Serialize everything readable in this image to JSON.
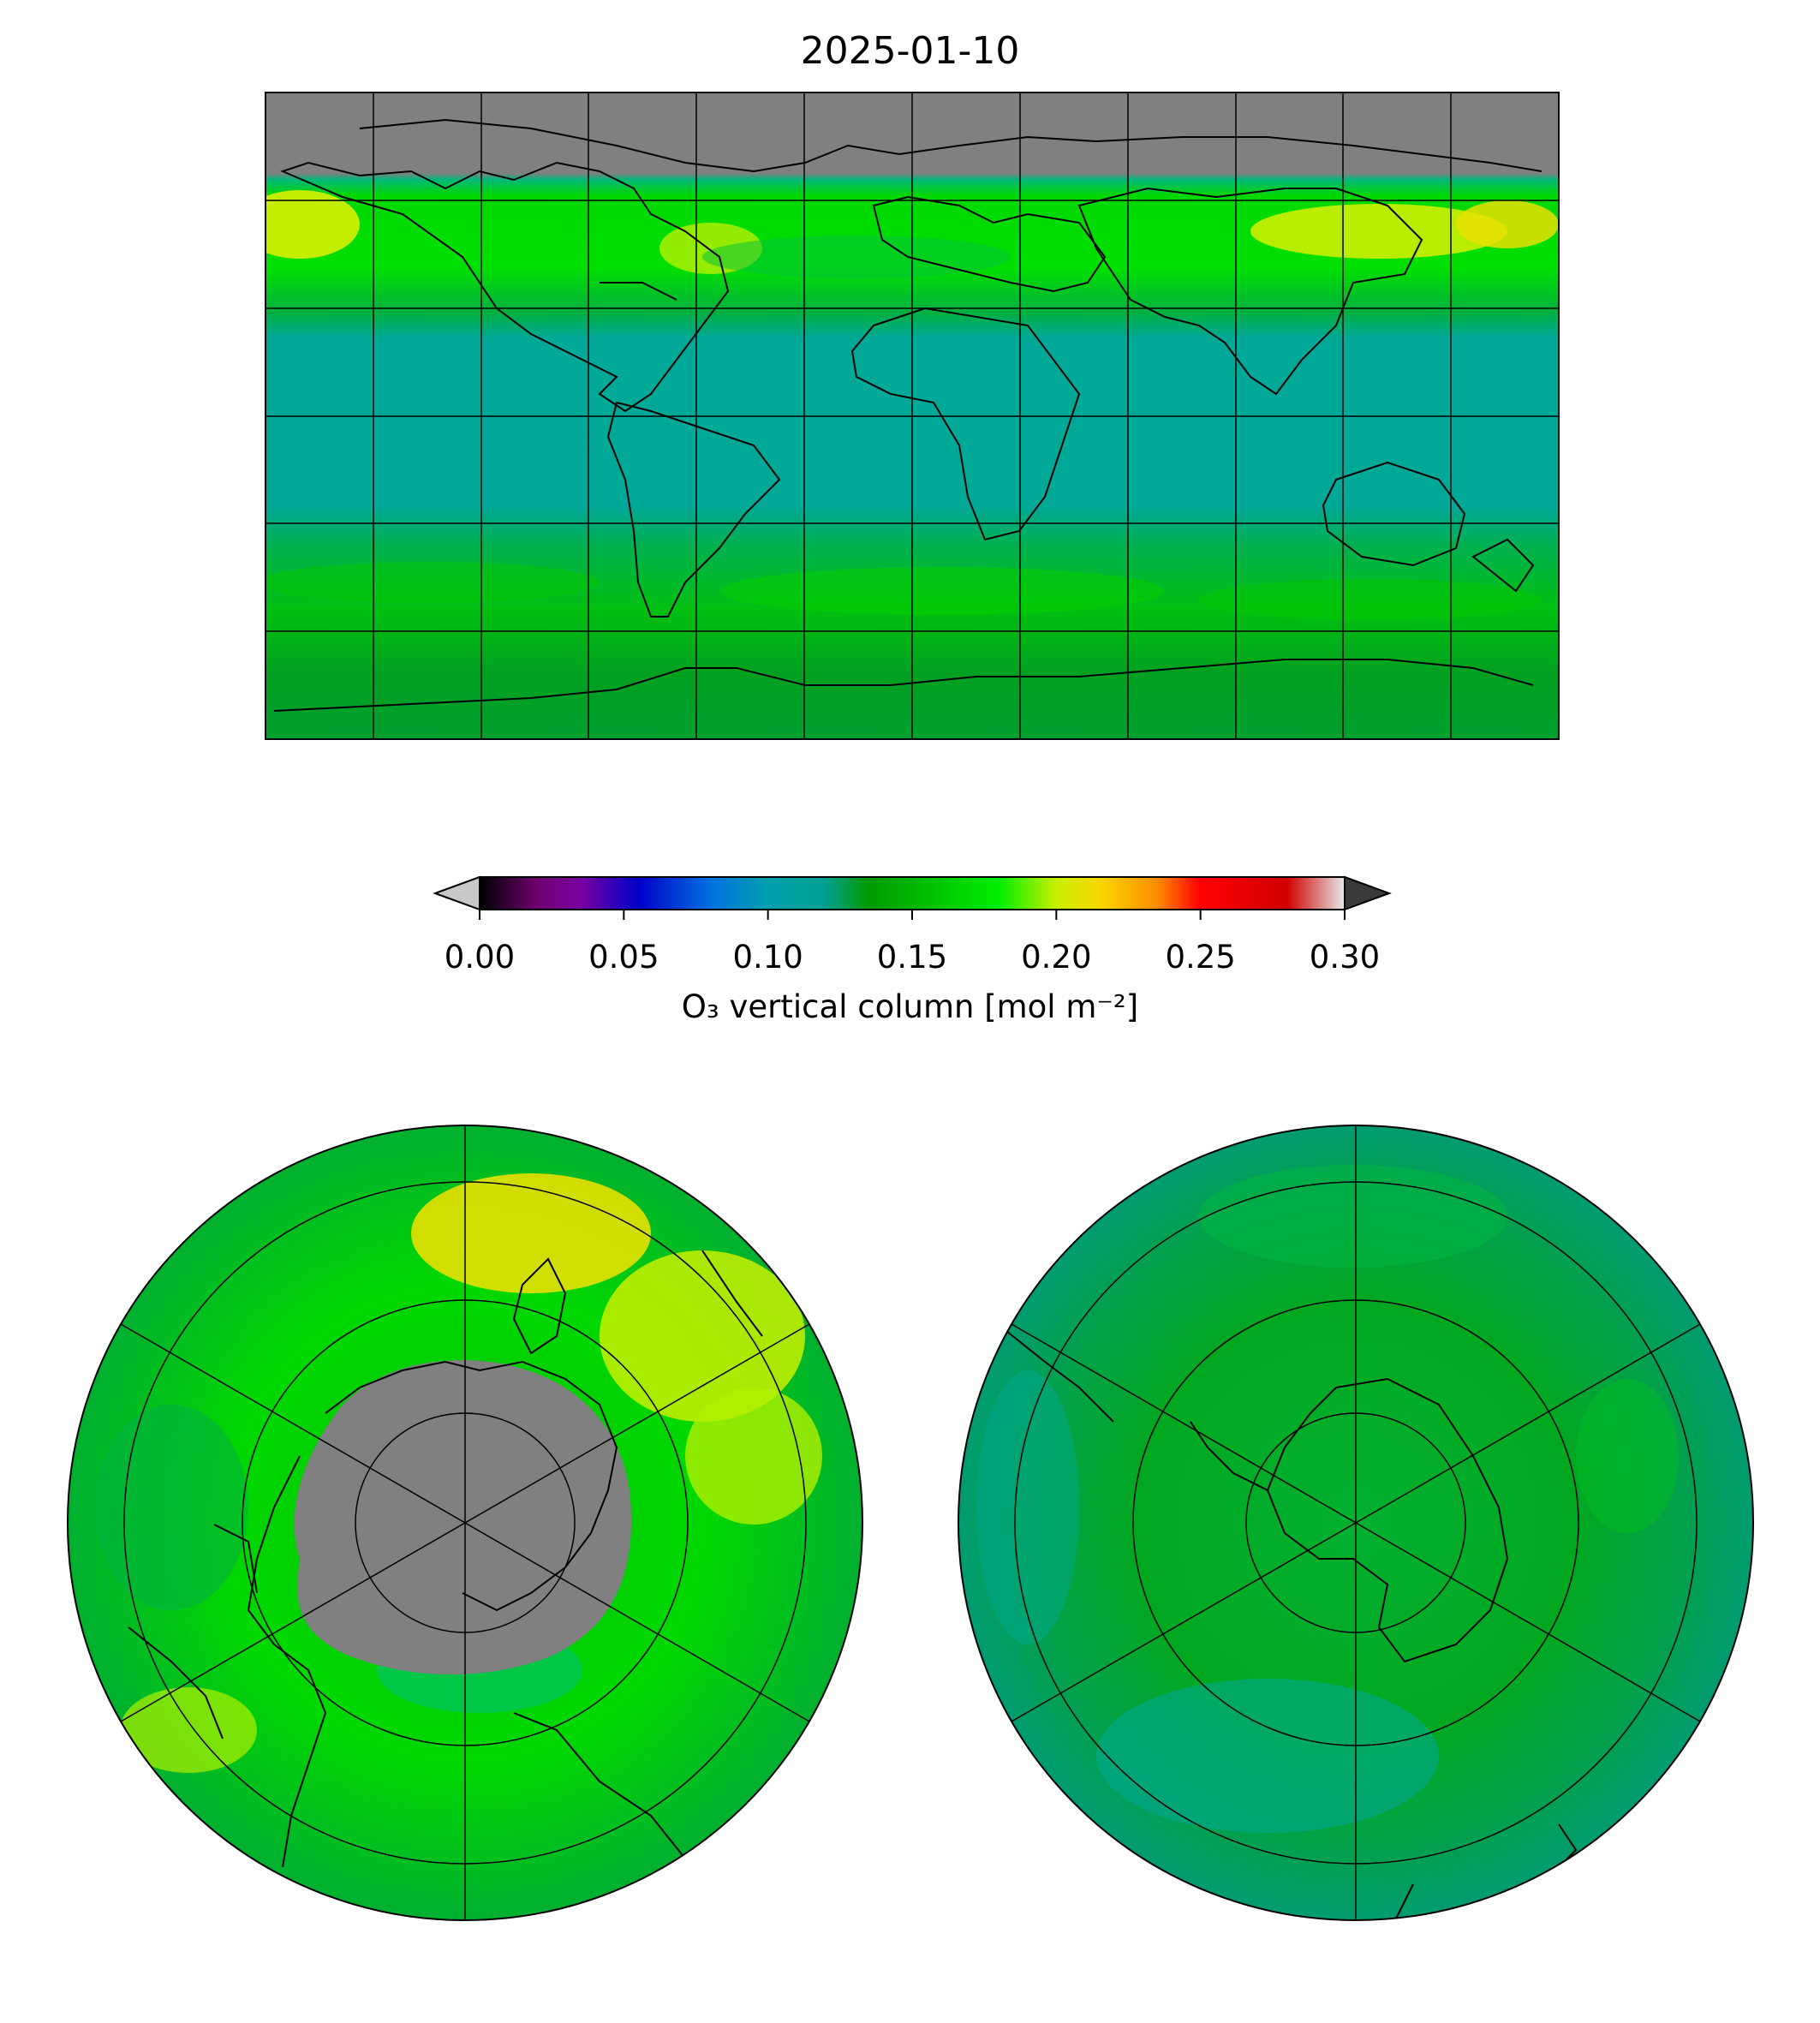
{
  "title": "2025-01-10",
  "colorbar": {
    "label": "O₃ vertical column [mol m⁻²]",
    "ticks": [
      "0.00",
      "0.05",
      "0.10",
      "0.15",
      "0.20",
      "0.25",
      "0.30"
    ],
    "range": [
      0.0,
      0.3
    ],
    "extend": "both",
    "under_color": "#c8c8c8",
    "over_color": "#3a3a3a",
    "stops": [
      {
        "v": 0.0,
        "c": "#000000"
      },
      {
        "v": 0.02,
        "c": "#6f006f"
      },
      {
        "v": 0.035,
        "c": "#7a00a0"
      },
      {
        "v": 0.055,
        "c": "#0000c8"
      },
      {
        "v": 0.08,
        "c": "#0070e0"
      },
      {
        "v": 0.1,
        "c": "#00a0b0"
      },
      {
        "v": 0.12,
        "c": "#00a090"
      },
      {
        "v": 0.135,
        "c": "#009a00"
      },
      {
        "v": 0.16,
        "c": "#00c800"
      },
      {
        "v": 0.18,
        "c": "#00ee00"
      },
      {
        "v": 0.2,
        "c": "#c8f000"
      },
      {
        "v": 0.215,
        "c": "#f8d800"
      },
      {
        "v": 0.235,
        "c": "#ff8c00"
      },
      {
        "v": 0.25,
        "c": "#ff0000"
      },
      {
        "v": 0.28,
        "c": "#d00000"
      },
      {
        "v": 0.3,
        "c": "#e8e8e8"
      }
    ]
  },
  "maps": {
    "global": {
      "projection": "equirectangular",
      "no_data_color": "#808080"
    },
    "north_polar": {
      "projection": "polar-stereographic-north",
      "no_data_color": "#808080"
    },
    "south_polar": {
      "projection": "polar-stereographic-south"
    }
  }
}
